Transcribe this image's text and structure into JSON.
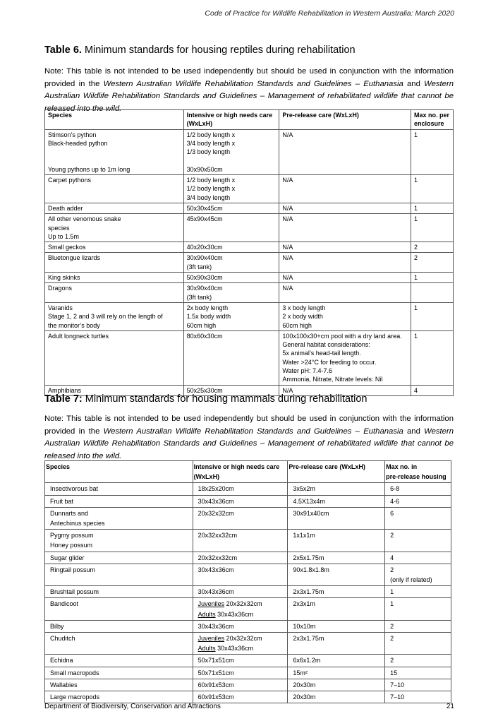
{
  "header": "Code of Practice for Wildlife Rehabilitation in Western Australia: March 2020",
  "table6": {
    "label": "Table 6.",
    "title": " Minimum standards for housing reptiles during rehabilitation",
    "note_parts": [
      "Note: This table is not intended to be used independently but should be used in conjunction with the information provided in the ",
      "Western Australian Wildlife Rehabilitation Standards and Guidelines – Euthanasia",
      " and ",
      "Western Australian Wildlife Rehabilitation Standards and Guidelines – Management of rehabilitated wildlife that cannot be released into the wild",
      "."
    ],
    "columns": [
      "Species",
      "Intensive or high needs care\n(WxLxH)",
      "Pre-release care (WxLxH)",
      "Max no. per\nenclosure"
    ],
    "rows": [
      [
        "Stimson’s python\nBlack-headed python\n\n\nYoung pythons up to 1m long",
        "1/2 body length x\n3/4 body length x\n1/3 body length\n\n30x90x50cm",
        "N/A",
        "1"
      ],
      [
        "Carpet pythons",
        "1/2 body length x\n1/2 body length x\n3/4 body length",
        "N/A",
        "1"
      ],
      [
        "Death adder",
        "50x30x45cm",
        "N/A",
        "1"
      ],
      [
        "All other venomous snake\nspecies\nUp to 1.5m",
        "45x90x45cm",
        "N/A",
        "1"
      ],
      [
        "Small geckos",
        "40x20x30cm",
        "N/A",
        "2"
      ],
      [
        "Bluetongue lizards",
        "30x90x40cm\n(3ft tank)",
        "N/A",
        "2"
      ],
      [
        "King skinks",
        "50x90x30cm",
        "N/A",
        "1"
      ],
      [
        "Dragons",
        "30x90x40cm\n(3ft tank)",
        "N/A",
        ""
      ],
      [
        "Varanids\nStage 1, 2 and 3 will rely on the length of\nthe monitor’s body",
        "2x body length\n1.5x body width\n60cm high",
        "3 x body length\n2 x body width\n60cm high",
        "1"
      ],
      [
        "Adult longneck turtles",
        "80x60x30cm",
        "100x100x30+cm pool with a dry land area.\nGeneral habitat considerations:\n5x animal’s head-tail length.\nWater >24°C for feeding to occur.\nWater pH: 7.4-7.6\nAmmonia, Nitrate, Nitrate levels: Nil",
        "1"
      ],
      [
        "Amphibians",
        "50x25x30cm",
        "N/A",
        "4"
      ]
    ]
  },
  "table7": {
    "label": "Table 7:",
    "title": " Minimum standards for housing mammals during rehabilitation",
    "note_parts": [
      "Note: This table is not intended to be used independently but should be used in conjunction with the information provided in the ",
      "Western Australian Wildlife Rehabilitation Standards and Guidelines – Euthanasia",
      " and ",
      "Western Australian Wildlife Rehabilitation Standards and Guidelines – Management of rehabilitated wildlife that cannot be released into the wild",
      "."
    ],
    "columns": [
      "Species",
      "Intensive or high needs care\n(WxLxH)",
      "Pre-release care (WxLxH)",
      "Max no. in\npre-release housing"
    ],
    "rows": [
      [
        "Insectivorous bat",
        "18x25x20cm",
        "3x5x2m",
        "6-8"
      ],
      [
        "Fruit bat",
        "30x43x36cm",
        "4.5X13x4m",
        "4-6"
      ],
      [
        "Dunnarts and\nAntechinus species",
        "20x32x32cm",
        "30x91x40cm",
        "6"
      ],
      [
        "Pygmy possum\nHoney possum",
        "20x32xx32cm",
        "1x1x1m",
        "2"
      ],
      [
        "Sugar glider",
        "20x32xx32cm",
        "2x5x1.75m",
        "4"
      ],
      [
        "Ringtail possum",
        "30x43x36cm",
        "90x1.8x1.8m",
        "2\n(only if related)"
      ],
      [
        "Brushtail possum",
        "30x43x36cm",
        "2x3x1.75m",
        "1"
      ],
      [
        "Bandicoot",
        "Juveniles 20x32x32cm\nAdults 30x43x36cm",
        "2x3x1m",
        "1"
      ],
      [
        "Bilby",
        "30x43x36cm",
        "10x10m",
        "2"
      ],
      [
        "Chuditch",
        "Juveniles 20x32x32cm\nAdults 30x43x36cm",
        "2x3x1.75m",
        "2"
      ],
      [
        "Echidna",
        "50x71x51cm",
        "6x6x1.2m",
        "2"
      ],
      [
        "Small macropods",
        "50x71x51cm",
        "15m²",
        "15"
      ],
      [
        "Wallabies",
        "60x91x53cm",
        "20x30m",
        "7–10"
      ],
      [
        "Large macropods",
        "60x91x53cm",
        "20x30m",
        "7–10"
      ]
    ]
  },
  "footer": {
    "left": "Department of Biodiversity, Conservation and Attractions",
    "page": "21"
  }
}
